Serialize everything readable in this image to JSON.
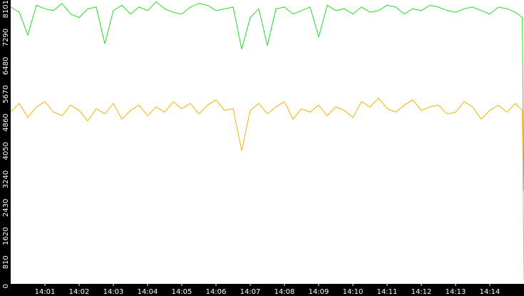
{
  "chart_data": {
    "type": "line",
    "x": [
      0,
      0.25,
      0.5,
      0.75,
      1,
      1.25,
      1.5,
      1.75,
      2,
      2.25,
      2.5,
      2.75,
      3,
      3.25,
      3.5,
      3.75,
      4,
      4.25,
      4.5,
      4.75,
      5,
      5.25,
      5.5,
      5.75,
      6,
      6.25,
      6.5,
      6.75,
      7,
      7.25,
      7.5,
      7.75,
      8,
      8.25,
      8.5,
      8.75,
      9,
      9.25,
      9.5,
      9.75,
      10,
      10.25,
      10.5,
      10.75,
      11,
      11.25,
      11.5,
      11.75,
      12,
      12.25,
      12.5,
      12.75,
      13,
      13.25,
      13.5,
      13.75,
      14,
      14.25,
      14.5,
      14.75,
      14.95,
      15
    ],
    "series": [
      {
        "color": "#22dd22",
        "values": [
          7900,
          7750,
          7100,
          7950,
          7850,
          7800,
          8000,
          7700,
          7600,
          7850,
          7900,
          6850,
          7800,
          7950,
          7700,
          7900,
          7800,
          8050,
          7850,
          7750,
          7700,
          7900,
          8000,
          7950,
          7800,
          7850,
          7900,
          6700,
          7600,
          7850,
          6800,
          7850,
          7900,
          7700,
          7800,
          7900,
          7050,
          7950,
          7800,
          7850,
          7700,
          7900,
          7750,
          7800,
          7950,
          7900,
          7700,
          7850,
          7800,
          7950,
          7900,
          7800,
          7750,
          7850,
          7900,
          7800,
          7700,
          7900,
          7850,
          7750,
          7600,
          2650
        ]
      },
      {
        "color": "#f0b400",
        "values": [
          4900,
          5150,
          4750,
          5050,
          5200,
          4900,
          4800,
          5100,
          4950,
          4650,
          5000,
          4850,
          5150,
          4700,
          4950,
          5100,
          4800,
          5050,
          4900,
          5200,
          5000,
          5150,
          4850,
          5100,
          5250,
          4950,
          5000,
          3800,
          4950,
          5150,
          4850,
          5050,
          5200,
          4700,
          5000,
          4900,
          5100,
          4800,
          5050,
          4950,
          4750,
          5200,
          5050,
          5300,
          5000,
          4900,
          5100,
          5250,
          4950,
          5050,
          5100,
          4850,
          4900,
          5200,
          5050,
          4700,
          4950,
          5100,
          4900,
          5150,
          4950,
          100
        ]
      }
    ],
    "xlim": [
      0,
      15
    ],
    "xticks": [
      {
        "value": 1,
        "label": "14:01"
      },
      {
        "value": 2,
        "label": "14:02"
      },
      {
        "value": 3,
        "label": "14:03"
      },
      {
        "value": 4,
        "label": "14:04"
      },
      {
        "value": 5,
        "label": "14:05"
      },
      {
        "value": 6,
        "label": "14:06"
      },
      {
        "value": 7,
        "label": "14:07"
      },
      {
        "value": 8,
        "label": "14:08"
      },
      {
        "value": 9,
        "label": "14:09"
      },
      {
        "value": 10,
        "label": "14:10"
      },
      {
        "value": 11,
        "label": "14:11"
      },
      {
        "value": 12,
        "label": "14:12"
      },
      {
        "value": 13,
        "label": "14:13"
      },
      {
        "value": 14,
        "label": "14:14"
      }
    ],
    "ylim": [
      0,
      8101
    ],
    "yticks": [
      0,
      810,
      1620,
      2430,
      3240,
      4050,
      4860,
      5670,
      6480,
      7290,
      8101
    ]
  }
}
